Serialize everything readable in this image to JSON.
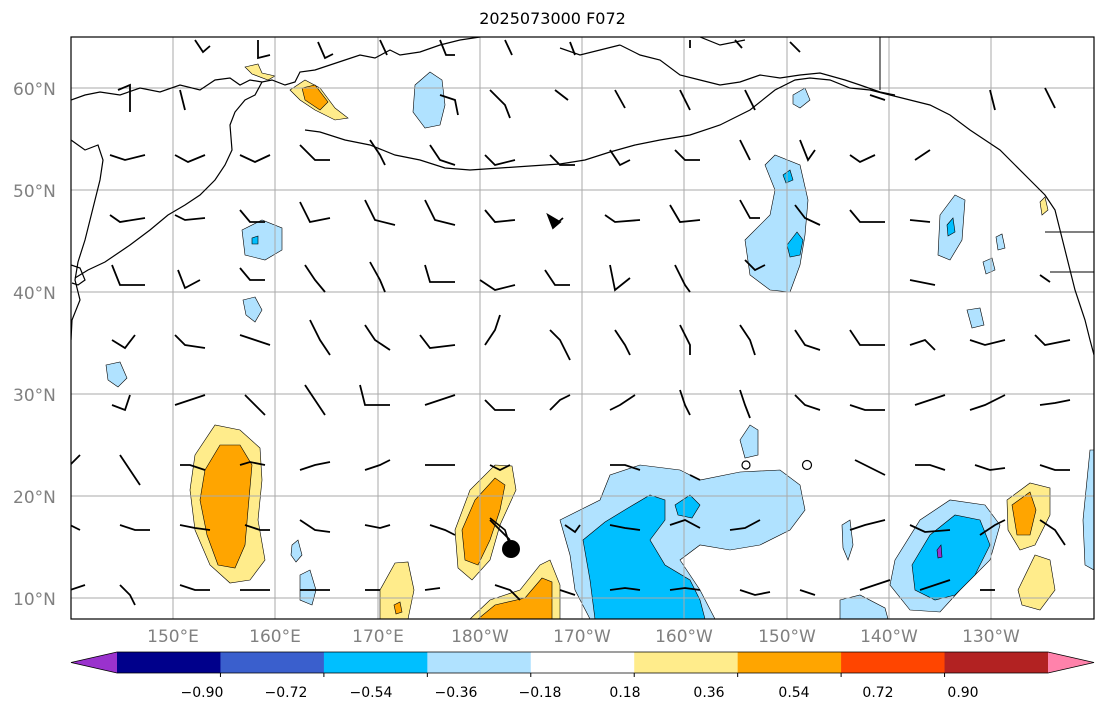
{
  "title": "2025073000 F072",
  "lat_labels": [
    "60°N",
    "50°N",
    "40°N",
    "30°N",
    "20°N",
    "10°N"
  ],
  "lon_labels": [
    "150°E",
    "160°E",
    "170°E",
    "180°W",
    "170°W",
    "160°W",
    "150°W",
    "140°W",
    "130°W"
  ],
  "colorbar": {
    "ticks": [
      "−0.90",
      "−0.72",
      "−0.54",
      "−0.36",
      "−0.18",
      "0.18",
      "0.36",
      "0.54",
      "0.72",
      "0.90"
    ],
    "colors": [
      "#9a32cd",
      "#00008b",
      "#3a5fcd",
      "#00bfff",
      "#b0e2ff",
      "#ffffff",
      "#ffec8b",
      "#ffa500",
      "#ff4500",
      "#b22222",
      "#ff82ab"
    ]
  },
  "palette": {
    "strong_negative": "#00bfff",
    "weak_negative": "#b0e2ff",
    "weak_positive": "#ffec8b",
    "strong_positive": "#ffa500",
    "grid": "#aaaaaa"
  },
  "map": {
    "projection": "PlateCarree",
    "lon_range": [
      "140°E",
      "120°W"
    ],
    "lat_range": [
      "8°N",
      "65°N"
    ],
    "features": [
      "coastlines",
      "country-borders",
      "wind-barbs",
      "filled-contours",
      "storm-marker"
    ]
  }
}
